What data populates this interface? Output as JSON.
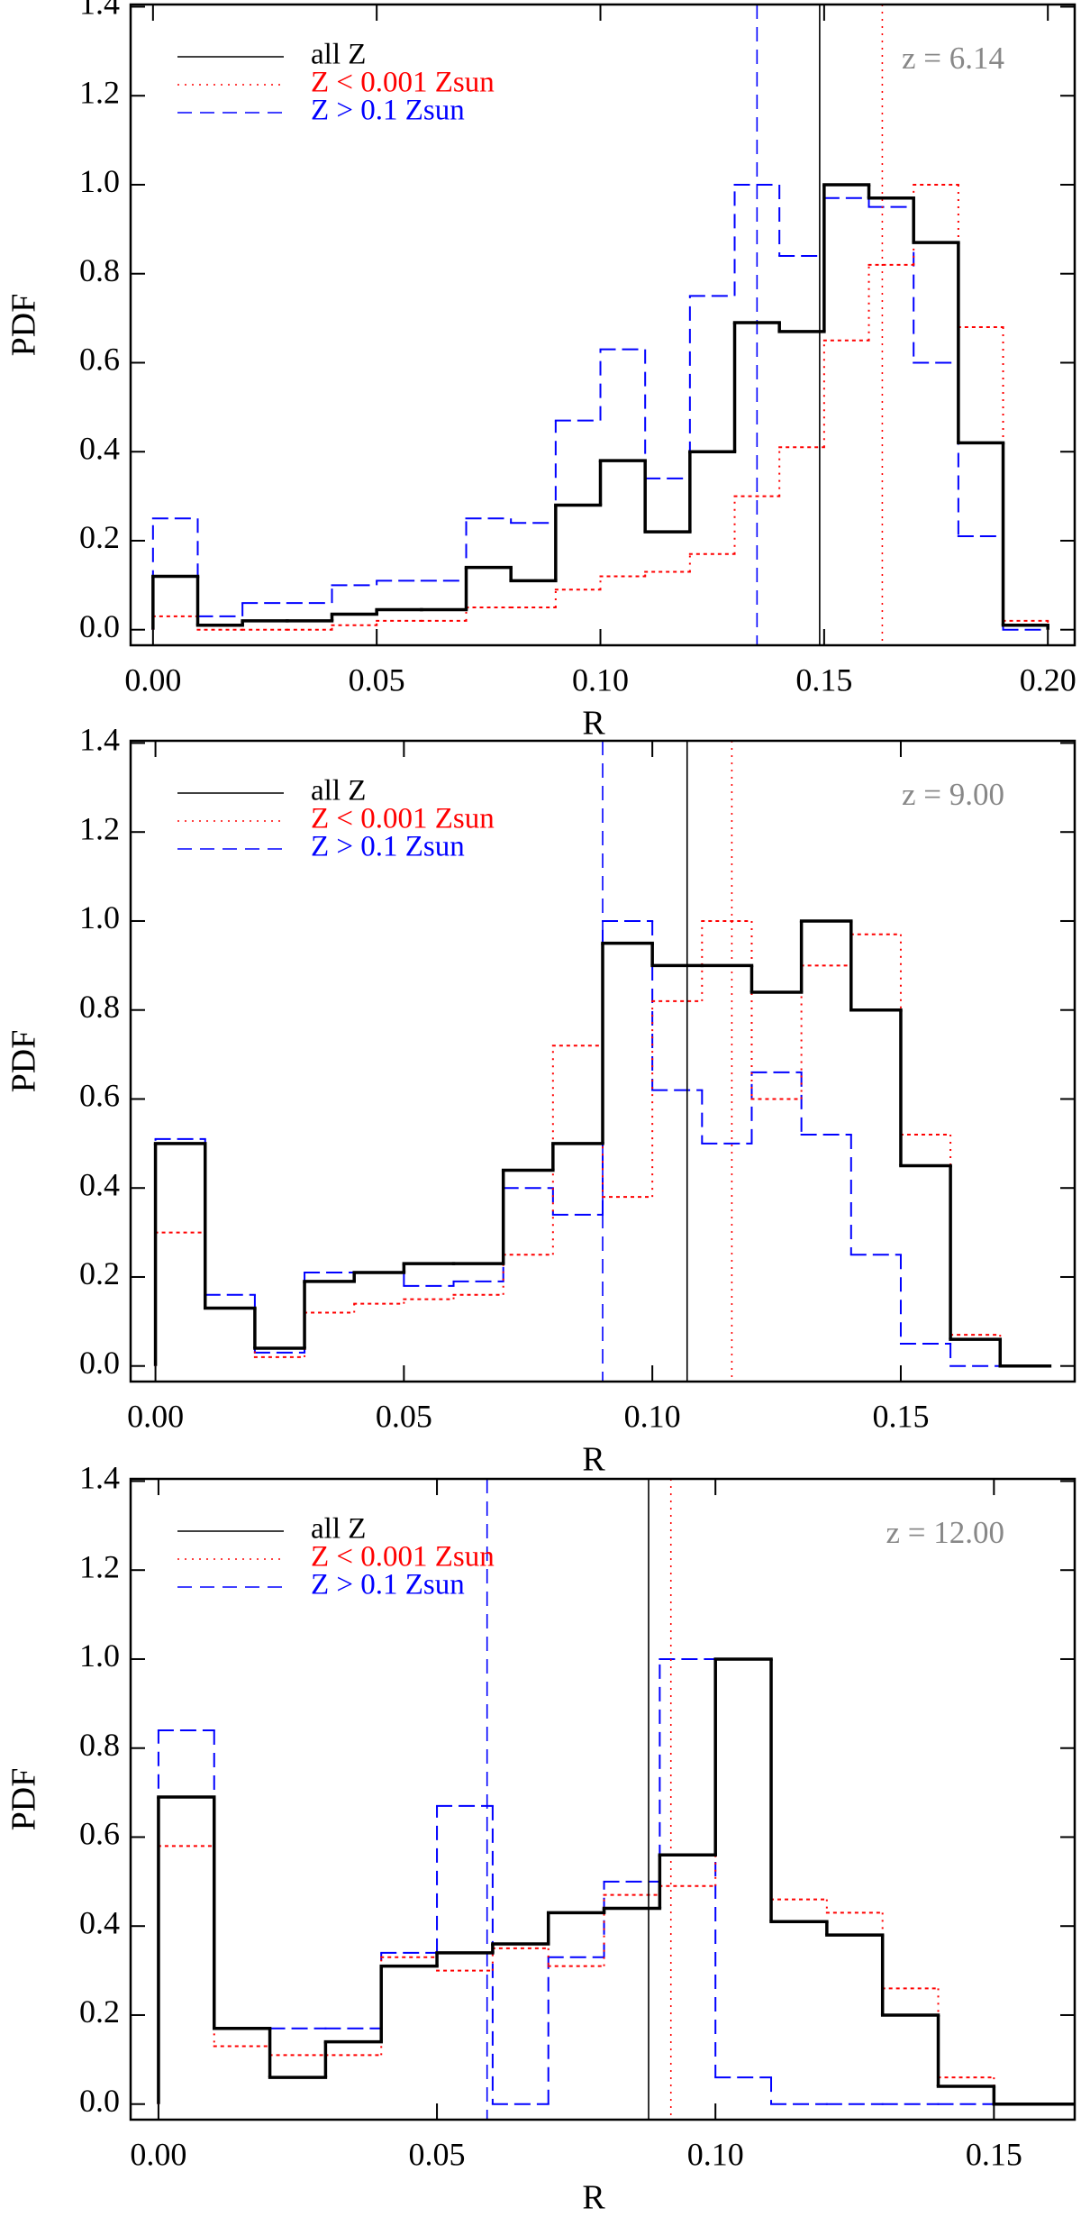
{
  "chart_data": [
    {
      "type": "histogram",
      "x_label": "R",
      "y_label": "PDF",
      "annotation": "z = 6.14",
      "annotation_color": "#888888",
      "xlim": [
        -0.005,
        0.206
      ],
      "ylim": [
        -0.035,
        1.405
      ],
      "xticks": [
        {
          "value": 0,
          "label": "0.00"
        },
        {
          "value": 0.05,
          "label": "0.05"
        },
        {
          "value": 0.1,
          "label": "0.10"
        },
        {
          "value": 0.15,
          "label": "0.15"
        },
        {
          "value": 0.2,
          "label": "0.20"
        }
      ],
      "yticks": [
        {
          "value": 0,
          "label": "0.0"
        },
        0.2,
        0.4,
        0.6,
        0.8,
        {
          "value": 1,
          "label": "1.0"
        },
        1.2,
        1.4
      ],
      "legend": "upper left",
      "bins": [
        0,
        0.01,
        0.02,
        0.03,
        0.04,
        0.05,
        0.06,
        0.07,
        0.08,
        0.09,
        0.1,
        0.11,
        0.12,
        0.13,
        0.14,
        0.15,
        0.16,
        0.17,
        0.18,
        0.19,
        0.2
      ],
      "series": [
        {
          "name": "all Z",
          "color": "#000000",
          "dash": "solid",
          "linewidth": 3.5,
          "vline": 0.149,
          "values": [
            0.12,
            0.01,
            0.02,
            0.02,
            0.035,
            0.045,
            0.045,
            0.14,
            0.11,
            0.28,
            0.38,
            0.22,
            0.4,
            0.69,
            0.67,
            1.0,
            0.97,
            0.87,
            0.42,
            0.01
          ]
        },
        {
          "name": "Z < 0.001 Zsun",
          "color": "#ff0000",
          "dash": "dotted",
          "linewidth": 2,
          "vline": 0.163,
          "values": [
            0.03,
            0.0,
            0.0,
            0.0,
            0.01,
            0.02,
            0.02,
            0.05,
            0.05,
            0.09,
            0.12,
            0.13,
            0.17,
            0.3,
            0.41,
            0.65,
            0.82,
            1.0,
            0.68,
            0.02
          ]
        },
        {
          "name": "Z > 0.1 Zsun",
          "color": "#0000ff",
          "dash": "dashed",
          "linewidth": 2,
          "vline": 0.135,
          "values": [
            0.25,
            0.03,
            0.06,
            0.06,
            0.1,
            0.11,
            0.11,
            0.25,
            0.24,
            0.47,
            0.63,
            0.34,
            0.75,
            1.0,
            0.84,
            0.97,
            0.95,
            0.6,
            0.21,
            0.0
          ]
        }
      ]
    },
    {
      "type": "histogram",
      "x_label": "R",
      "y_label": "PDF",
      "annotation": "z = 9.00",
      "annotation_color": "#888888",
      "xlim": [
        -0.005,
        0.185
      ],
      "ylim": [
        -0.035,
        1.405
      ],
      "xticks": [
        {
          "value": 0,
          "label": "0.00"
        },
        {
          "value": 0.05,
          "label": "0.05"
        },
        {
          "value": 0.1,
          "label": "0.10"
        },
        {
          "value": 0.15,
          "label": "0.15"
        }
      ],
      "yticks": [
        {
          "value": 0,
          "label": "0.0"
        },
        0.2,
        0.4,
        0.6,
        0.8,
        {
          "value": 1,
          "label": "1.0"
        },
        1.2,
        1.4
      ],
      "legend": "upper left",
      "bins": [
        0,
        0.01,
        0.02,
        0.03,
        0.04,
        0.05,
        0.06,
        0.07,
        0.08,
        0.09,
        0.1,
        0.11,
        0.12,
        0.13,
        0.14,
        0.15,
        0.16,
        0.17,
        0.18
      ],
      "series": [
        {
          "name": "all Z",
          "color": "#000000",
          "dash": "solid",
          "linewidth": 3.5,
          "vline": 0.107,
          "values": [
            0.5,
            0.13,
            0.04,
            0.19,
            0.21,
            0.23,
            0.23,
            0.44,
            0.5,
            0.95,
            0.9,
            0.9,
            0.84,
            1.0,
            0.8,
            0.45,
            0.06,
            0.0
          ]
        },
        {
          "name": "Z < 0.001 Zsun",
          "color": "#ff0000",
          "dash": "dotted",
          "linewidth": 2,
          "vline": 0.116,
          "values": [
            0.3,
            0.13,
            0.02,
            0.12,
            0.14,
            0.15,
            0.16,
            0.25,
            0.72,
            0.38,
            0.82,
            1.0,
            0.6,
            0.9,
            0.97,
            0.52,
            0.07,
            0.0
          ]
        },
        {
          "name": "Z > 0.1 Zsun",
          "color": "#0000ff",
          "dash": "dashed",
          "linewidth": 2,
          "vline": 0.09,
          "values": [
            0.51,
            0.16,
            0.03,
            0.21,
            0.21,
            0.18,
            0.19,
            0.4,
            0.34,
            1.0,
            0.62,
            0.5,
            0.66,
            0.52,
            0.25,
            0.05,
            0.0,
            0.0
          ]
        }
      ]
    },
    {
      "type": "histogram",
      "x_label": "R",
      "y_label": "PDF",
      "annotation": "z = 12.00",
      "annotation_color": "#888888",
      "xlim": [
        -0.005,
        0.1645
      ],
      "ylim": [
        -0.035,
        1.405
      ],
      "xticks": [
        {
          "value": 0,
          "label": "0.00"
        },
        {
          "value": 0.05,
          "label": "0.05"
        },
        {
          "value": 0.1,
          "label": "0.10"
        },
        {
          "value": 0.15,
          "label": "0.15"
        }
      ],
      "yticks": [
        {
          "value": 0,
          "label": "0.0"
        },
        0.2,
        0.4,
        0.6,
        0.8,
        {
          "value": 1,
          "label": "1.0"
        },
        1.2,
        1.4
      ],
      "legend": "upper left",
      "bins": [
        0,
        0.01,
        0.02,
        0.03,
        0.04,
        0.05,
        0.06,
        0.07,
        0.08,
        0.09,
        0.1,
        0.11,
        0.12,
        0.13,
        0.14,
        0.15,
        0.16,
        0.17
      ],
      "series": [
        {
          "name": "all Z",
          "color": "#000000",
          "dash": "solid",
          "linewidth": 3.5,
          "vline": 0.088,
          "values": [
            0.69,
            0.17,
            0.06,
            0.14,
            0.31,
            0.34,
            0.36,
            0.43,
            0.44,
            0.56,
            1.0,
            0.41,
            0.38,
            0.2,
            0.04,
            0.0,
            0.0
          ]
        },
        {
          "name": "Z < 0.001 Zsun",
          "color": "#ff0000",
          "dash": "dotted",
          "linewidth": 2,
          "vline": 0.092,
          "values": [
            0.58,
            0.13,
            0.11,
            0.11,
            0.33,
            0.3,
            0.35,
            0.31,
            0.47,
            0.49,
            1.0,
            0.46,
            0.43,
            0.26,
            0.06,
            0.0,
            0.0
          ]
        },
        {
          "name": "Z > 0.1 Zsun",
          "color": "#0000ff",
          "dash": "dashed",
          "linewidth": 2,
          "vline": 0.059,
          "values": [
            0.84,
            0.17,
            0.17,
            0.17,
            0.34,
            0.67,
            0.0,
            0.33,
            0.5,
            1.0,
            0.06,
            0.0,
            0.0,
            0.0,
            0.0,
            0.0,
            0.0
          ]
        }
      ]
    }
  ]
}
